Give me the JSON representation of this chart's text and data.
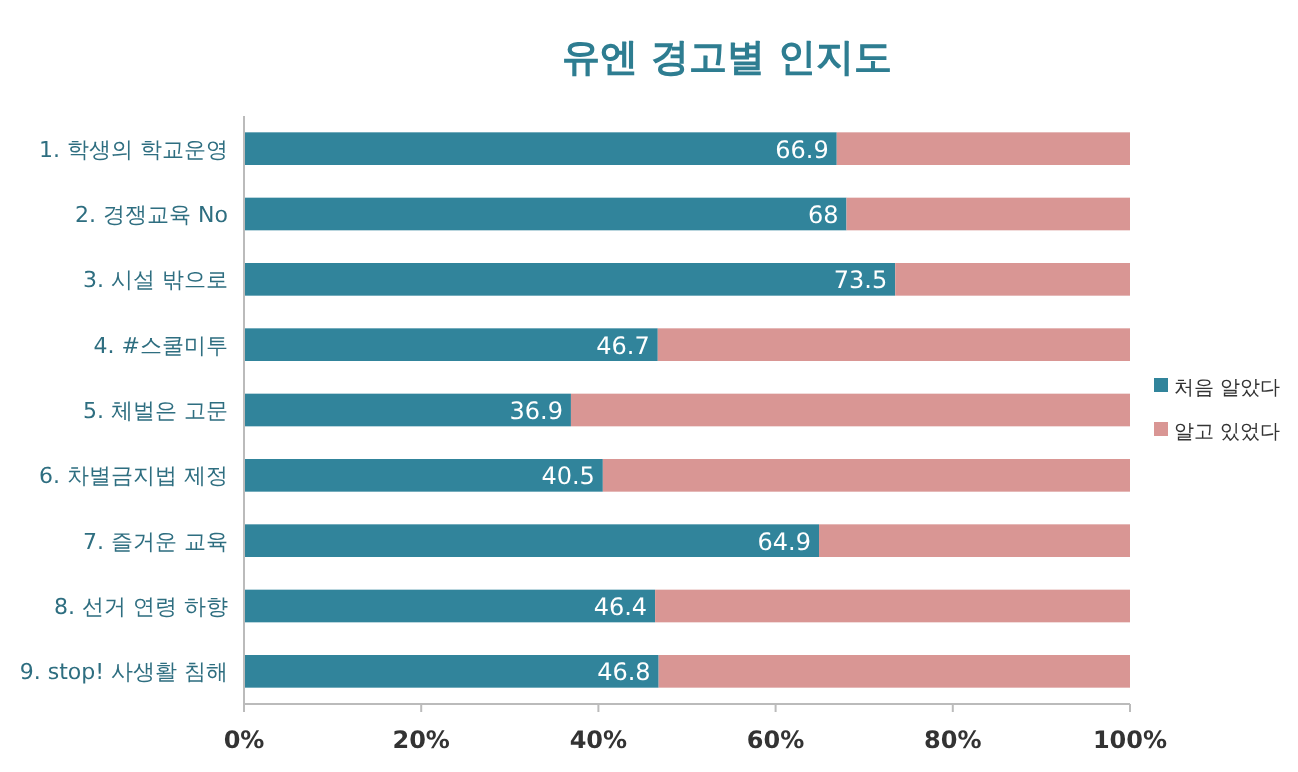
{
  "chart_data": {
    "type": "bar",
    "orientation": "horizontal",
    "stacked": true,
    "title": "유엔 경고별 인지도",
    "categories": [
      "1. 학생의 학교운영",
      "2. 경쟁교육 No",
      "3. 시설 밖으로",
      "4. #스쿨미투",
      "5. 체벌은 고문",
      "6. 차별금지법 제정",
      "7. 즐거운 교육",
      "8. 선거 연령 하향",
      "9. stop! 사생활 침해"
    ],
    "series": [
      {
        "name": "처음 알았다",
        "color": "#31849b",
        "values": [
          66.9,
          68,
          73.5,
          46.7,
          36.9,
          40.5,
          64.9,
          46.4,
          46.8
        ],
        "value_labels": [
          "66.9",
          "68",
          "73.5",
          "46.7",
          "36.9",
          "40.5",
          "64.9",
          "46.4",
          "46.8"
        ]
      },
      {
        "name": "알고 있었다",
        "color": "#d99694",
        "values": [
          33.1,
          32,
          26.5,
          53.3,
          63.1,
          59.5,
          35.1,
          53.6,
          53.2
        ]
      }
    ],
    "xlim": [
      0,
      100
    ],
    "xticks": [
      {
        "value": 0,
        "label": "0%"
      },
      {
        "value": 20,
        "label": "20%"
      },
      {
        "value": 40,
        "label": "40%"
      },
      {
        "value": 60,
        "label": "60%"
      },
      {
        "value": 80,
        "label": "80%"
      },
      {
        "value": 100,
        "label": "100%"
      }
    ],
    "grid": false,
    "legend": "right"
  }
}
